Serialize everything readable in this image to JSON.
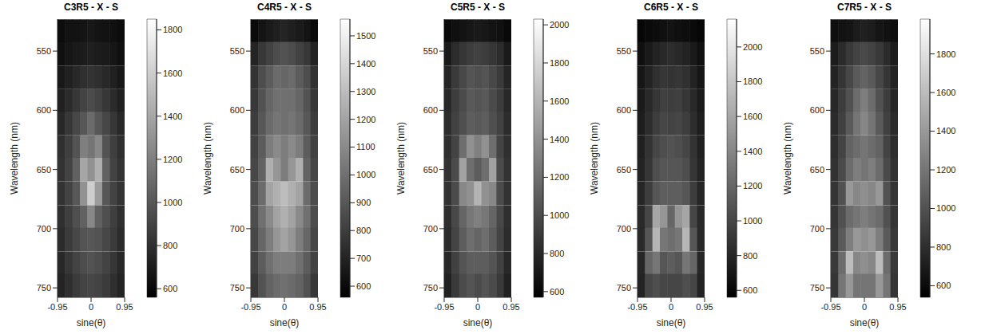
{
  "chart_data": [
    {
      "type": "heatmap",
      "title": "C3R5 - X - S",
      "x_label": "sine(θ)",
      "y_label": "Wavelength (nm)",
      "xlim": [
        -0.95,
        0.95
      ],
      "xticks": [
        -0.95,
        0,
        0.95
      ],
      "ylim": [
        523,
        758
      ],
      "yticks": [
        550,
        600,
        650,
        700,
        750
      ],
      "cells": {
        "x": [
          -0.844,
          -0.633,
          -0.422,
          -0.211,
          0,
          0.211,
          0.422,
          0.633,
          0.844
        ],
        "y": [
          533,
          552,
          572,
          592,
          611,
          631,
          650,
          670,
          690,
          709,
          729,
          748
        ],
        "values": [
          [
            620,
            650,
            650,
            660,
            680,
            660,
            650,
            640,
            620
          ],
          [
            640,
            670,
            690,
            700,
            720,
            700,
            690,
            670,
            640
          ],
          [
            680,
            720,
            760,
            800,
            820,
            800,
            760,
            720,
            680
          ],
          [
            720,
            780,
            840,
            900,
            940,
            900,
            840,
            780,
            720
          ],
          [
            760,
            840,
            920,
            1000,
            1100,
            1000,
            920,
            840,
            760
          ],
          [
            800,
            880,
            980,
            1200,
            1150,
            1250,
            980,
            880,
            800
          ],
          [
            820,
            900,
            1050,
            1400,
            1300,
            1450,
            1050,
            900,
            820
          ],
          [
            820,
            900,
            1000,
            1300,
            1600,
            1350,
            1000,
            900,
            820
          ],
          [
            800,
            880,
            960,
            1050,
            1250,
            1050,
            960,
            880,
            800
          ],
          [
            780,
            860,
            920,
            980,
            1000,
            980,
            920,
            860,
            780
          ],
          [
            760,
            840,
            900,
            950,
            980,
            950,
            900,
            840,
            760
          ],
          [
            740,
            800,
            860,
            900,
            920,
            900,
            860,
            800,
            740
          ]
        ]
      },
      "colorbar": {
        "range": [
          560,
          1850
        ],
        "ticks": [
          600,
          800,
          1000,
          1200,
          1400,
          1600,
          1800
        ]
      }
    },
    {
      "type": "heatmap",
      "title": "C4R5 - X - S",
      "x_label": "sine(θ)",
      "y_label": "Wavelength (nm)",
      "xlim": [
        -0.95,
        0.95
      ],
      "xticks": [
        -0.95,
        0,
        0.95
      ],
      "ylim": [
        523,
        758
      ],
      "yticks": [
        550,
        600,
        650,
        700,
        750
      ],
      "cells": {
        "x": [
          -0.844,
          -0.633,
          -0.422,
          -0.211,
          0,
          0.211,
          0.422,
          0.633,
          0.844
        ],
        "y": [
          533,
          552,
          572,
          592,
          611,
          631,
          650,
          670,
          690,
          709,
          729,
          748
        ],
        "values": [
          [
            600,
            640,
            660,
            680,
            700,
            680,
            660,
            640,
            600
          ],
          [
            700,
            780,
            820,
            860,
            880,
            860,
            820,
            780,
            700
          ],
          [
            760,
            860,
            920,
            980,
            960,
            980,
            920,
            860,
            760
          ],
          [
            780,
            880,
            960,
            1000,
            1000,
            1000,
            960,
            880,
            780
          ],
          [
            800,
            900,
            980,
            1020,
            1000,
            1020,
            980,
            900,
            800
          ],
          [
            820,
            920,
            1050,
            1100,
            1050,
            1100,
            1050,
            920,
            820
          ],
          [
            840,
            950,
            1250,
            1150,
            1050,
            1150,
            1250,
            950,
            840
          ],
          [
            860,
            980,
            1200,
            1250,
            1300,
            1250,
            1200,
            980,
            860
          ],
          [
            860,
            1000,
            1100,
            1200,
            1250,
            1200,
            1100,
            1000,
            860
          ],
          [
            840,
            960,
            1050,
            1150,
            1200,
            1150,
            1050,
            960,
            840
          ],
          [
            820,
            920,
            1000,
            1050,
            1050,
            1050,
            1000,
            920,
            820
          ],
          [
            780,
            880,
            950,
            980,
            1000,
            980,
            950,
            880,
            780
          ]
        ]
      },
      "colorbar": {
        "range": [
          560,
          1560
        ],
        "ticks": [
          600,
          700,
          800,
          900,
          1000,
          1100,
          1200,
          1300,
          1400,
          1500
        ]
      }
    },
    {
      "type": "heatmap",
      "title": "C5R5 - X - S",
      "x_label": "sine(θ)",
      "y_label": "Wavelength (nm)",
      "xlim": [
        -0.95,
        0.95
      ],
      "xticks": [
        -0.95,
        0,
        0.95
      ],
      "ylim": [
        523,
        758
      ],
      "yticks": [
        550,
        600,
        650,
        700,
        750
      ],
      "cells": {
        "x": [
          -0.844,
          -0.633,
          -0.422,
          -0.211,
          0,
          0.211,
          0.422,
          0.633,
          0.844
        ],
        "y": [
          533,
          552,
          572,
          592,
          611,
          631,
          650,
          670,
          690,
          709,
          729,
          748
        ],
        "values": [
          [
            620,
            660,
            680,
            700,
            720,
            700,
            680,
            660,
            620
          ],
          [
            720,
            820,
            880,
            920,
            940,
            920,
            880,
            820,
            720
          ],
          [
            780,
            900,
            980,
            1050,
            1020,
            1050,
            980,
            900,
            780
          ],
          [
            800,
            920,
            1000,
            1080,
            1050,
            1080,
            1000,
            920,
            800
          ],
          [
            820,
            940,
            1020,
            1100,
            1080,
            1100,
            1020,
            940,
            820
          ],
          [
            840,
            960,
            1200,
            1400,
            1300,
            1400,
            1200,
            960,
            840
          ],
          [
            860,
            1000,
            1500,
            1200,
            1100,
            1200,
            1500,
            1000,
            860
          ],
          [
            860,
            1000,
            1350,
            1400,
            1600,
            1400,
            1350,
            1000,
            860
          ],
          [
            840,
            980,
            1150,
            1250,
            1300,
            1250,
            1150,
            980,
            840
          ],
          [
            820,
            960,
            1100,
            1200,
            1150,
            1200,
            1100,
            960,
            820
          ],
          [
            800,
            940,
            1050,
            1100,
            1100,
            1100,
            1050,
            940,
            800
          ],
          [
            760,
            900,
            1000,
            1050,
            1000,
            1050,
            1000,
            900,
            760
          ]
        ]
      },
      "colorbar": {
        "range": [
          570,
          2030
        ],
        "ticks": [
          600,
          800,
          1000,
          1200,
          1400,
          1600,
          1800,
          2000
        ]
      }
    },
    {
      "type": "heatmap",
      "title": "C6R5 - X - S",
      "x_label": "sine(θ)",
      "y_label": "Wavelength (nm)",
      "xlim": [
        -0.95,
        0.95
      ],
      "xticks": [
        -0.95,
        0,
        0.95
      ],
      "ylim": [
        523,
        758
      ],
      "yticks": [
        550,
        600,
        650,
        700,
        750
      ],
      "cells": {
        "x": [
          -0.844,
          -0.633,
          -0.422,
          -0.211,
          0,
          0.211,
          0.422,
          0.633,
          0.844
        ],
        "y": [
          533,
          552,
          572,
          592,
          611,
          631,
          650,
          670,
          690,
          709,
          729,
          748
        ],
        "values": [
          [
            600,
            620,
            640,
            660,
            680,
            660,
            640,
            620,
            600
          ],
          [
            660,
            720,
            780,
            820,
            840,
            820,
            780,
            720,
            660
          ],
          [
            700,
            780,
            860,
            900,
            880,
            900,
            860,
            780,
            700
          ],
          [
            720,
            820,
            900,
            960,
            940,
            960,
            900,
            820,
            720
          ],
          [
            740,
            840,
            940,
            1000,
            980,
            1000,
            940,
            840,
            740
          ],
          [
            760,
            880,
            1000,
            1050,
            1080,
            1050,
            1000,
            880,
            760
          ],
          [
            780,
            900,
            1050,
            1100,
            1100,
            1100,
            1050,
            900,
            780
          ],
          [
            800,
            940,
            1100,
            1150,
            1150,
            1150,
            1100,
            940,
            800
          ],
          [
            820,
            1000,
            1600,
            1500,
            1200,
            1500,
            1600,
            1000,
            820
          ],
          [
            820,
            1100,
            1700,
            1300,
            1250,
            1300,
            1700,
            1100,
            820
          ],
          [
            800,
            1200,
            1300,
            1100,
            1150,
            1100,
            1300,
            1200,
            800
          ],
          [
            780,
            1000,
            1050,
            1000,
            1000,
            1000,
            1050,
            1000,
            780
          ]
        ]
      },
      "colorbar": {
        "range": [
          560,
          2160
        ],
        "ticks": [
          600,
          800,
          1000,
          1200,
          1400,
          1600,
          1800,
          2000
        ]
      }
    },
    {
      "type": "heatmap",
      "title": "C7R5 - X - S",
      "x_label": "sine(θ)",
      "y_label": "Wavelength (nm)",
      "xlim": [
        -0.95,
        0.95
      ],
      "xticks": [
        -0.95,
        0,
        0.95
      ],
      "ylim": [
        523,
        758
      ],
      "yticks": [
        550,
        600,
        650,
        700,
        750
      ],
      "cells": {
        "x": [
          -0.844,
          -0.633,
          -0.422,
          -0.211,
          0,
          0.211,
          0.422,
          0.633,
          0.844
        ],
        "y": [
          533,
          552,
          572,
          592,
          611,
          631,
          650,
          670,
          690,
          709,
          729,
          748
        ],
        "values": [
          [
            620,
            640,
            660,
            700,
            720,
            700,
            660,
            640,
            620
          ],
          [
            700,
            780,
            860,
            920,
            950,
            920,
            860,
            780,
            700
          ],
          [
            740,
            840,
            940,
            1050,
            1100,
            1050,
            940,
            840,
            740
          ],
          [
            760,
            880,
            1000,
            1150,
            1250,
            1150,
            1000,
            880,
            760
          ],
          [
            780,
            900,
            1050,
            1200,
            1300,
            1200,
            1050,
            900,
            780
          ],
          [
            800,
            920,
            1100,
            1150,
            1200,
            1150,
            1100,
            920,
            800
          ],
          [
            820,
            960,
            1150,
            1250,
            1200,
            1250,
            1150,
            960,
            820
          ],
          [
            840,
            1000,
            1400,
            1300,
            1350,
            1300,
            1400,
            1000,
            840
          ],
          [
            840,
            1000,
            1150,
            1200,
            1250,
            1200,
            1150,
            1000,
            840
          ],
          [
            860,
            1050,
            1250,
            1400,
            1350,
            1400,
            1250,
            1050,
            860
          ],
          [
            860,
            1150,
            1600,
            1300,
            1350,
            1300,
            1600,
            1150,
            860
          ],
          [
            840,
            1200,
            1400,
            1200,
            1200,
            1200,
            1400,
            1200,
            840
          ]
        ]
      },
      "colorbar": {
        "range": [
          540,
          1980
        ],
        "ticks": [
          600,
          800,
          1000,
          1200,
          1400,
          1600,
          1800
        ]
      }
    }
  ]
}
